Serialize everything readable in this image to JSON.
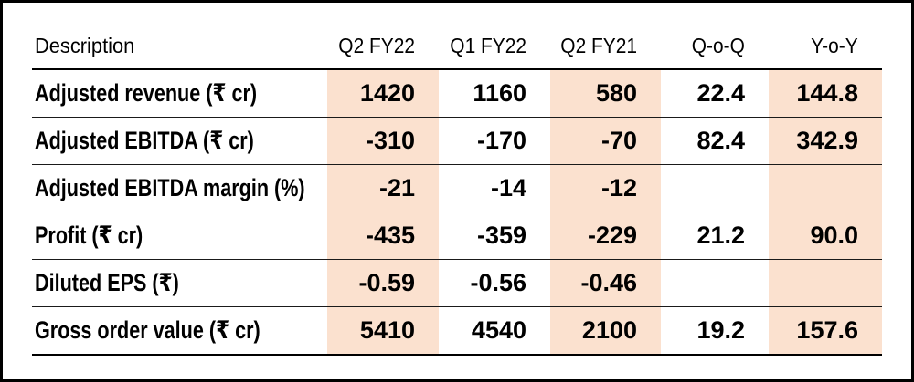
{
  "chart_data": {
    "type": "table",
    "columns": [
      "Description",
      "Q2 FY22",
      "Q1 FY22",
      "Q2 FY21",
      "Q-o-Q",
      "Y-o-Y"
    ],
    "highlighted_columns": [
      "Q2 FY22",
      "Q2 FY21",
      "Y-o-Y"
    ],
    "highlight_color": "#fbe1cf",
    "rule_color": "#1a1a1a",
    "border_color": "#000000",
    "text_color": "#000000",
    "rows": [
      {
        "label": "Adjusted revenue (₹ cr)",
        "values": [
          "1420",
          "1160",
          "580",
          "22.4",
          "144.8"
        ]
      },
      {
        "label": "Adjusted EBITDA (₹ cr)",
        "values": [
          "-310",
          "-170",
          "-70",
          "82.4",
          "342.9"
        ]
      },
      {
        "label": "Adjusted EBITDA margin (%)",
        "values": [
          "-21",
          "-14",
          "-12",
          "",
          ""
        ]
      },
      {
        "label": "Profit (₹ cr)",
        "values": [
          "-435",
          "-359",
          "-229",
          "21.2",
          "90.0"
        ]
      },
      {
        "label": "Diluted EPS (₹)",
        "values": [
          "-0.59",
          "-0.56",
          "-0.46",
          "",
          ""
        ]
      },
      {
        "label": "Gross order value (₹ cr)",
        "values": [
          "5410",
          "4540",
          "2100",
          "19.2",
          "157.6"
        ]
      }
    ]
  }
}
